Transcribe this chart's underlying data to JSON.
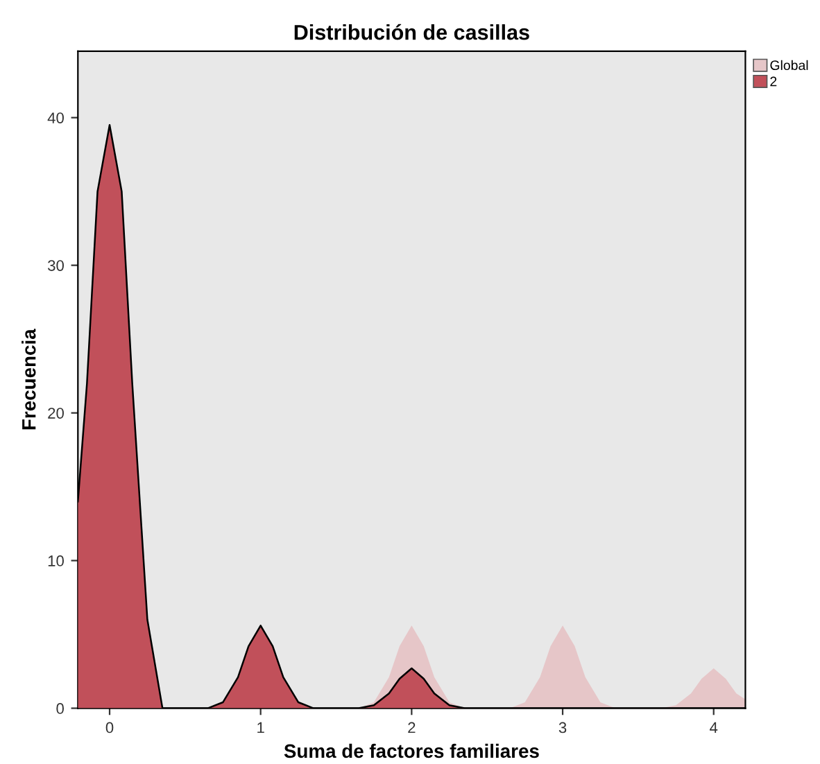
{
  "chart_data": {
    "type": "area",
    "title": "Distribución de casillas",
    "xlabel": "Suma de factores familiares",
    "ylabel": "Frecuencia",
    "xlim": [
      -0.21,
      4.21
    ],
    "xticks": [
      0,
      1,
      2,
      3,
      4
    ],
    "ylim": [
      0,
      44.5
    ],
    "yticks": [
      0,
      10,
      20,
      30,
      40
    ],
    "grid": false,
    "legend": "top right",
    "series": [
      {
        "name": "Global",
        "color": "#e6c6c8",
        "x": [
          1.65,
          1.75,
          1.85,
          1.92,
          2,
          2.08,
          2.15,
          2.25,
          2.35,
          2.65,
          2.75,
          2.85,
          2.92,
          3,
          3.08,
          3.15,
          3.25,
          3.35,
          3.65,
          3.75,
          3.85,
          3.92,
          4,
          4.08,
          4.15,
          4.21
        ],
        "values": [
          0,
          0.4,
          2.1,
          4.2,
          5.6,
          4.2,
          2.1,
          0.4,
          0,
          0,
          0.4,
          2.1,
          4.2,
          5.6,
          4.2,
          2.1,
          0.4,
          0,
          0,
          0.2,
          1,
          2,
          2.7,
          2,
          1,
          0.6
        ]
      },
      {
        "name": "2",
        "color": "#c1505a",
        "x": [
          -0.21,
          -0.15,
          -0.08,
          0,
          0.08,
          0.15,
          0.25,
          0.35,
          0.65,
          0.75,
          0.85,
          0.92,
          1,
          1.08,
          1.15,
          1.25,
          1.35,
          1.65,
          1.75,
          1.85,
          1.92,
          2,
          2.08,
          2.15,
          2.25,
          2.35,
          4.21
        ],
        "values": [
          14,
          22,
          35,
          39.5,
          35,
          22,
          6,
          0,
          0,
          0.4,
          2.1,
          4.2,
          5.6,
          4.2,
          2.1,
          0.4,
          0,
          0,
          0.2,
          1,
          2,
          2.7,
          2,
          1,
          0.2,
          0,
          0
        ]
      }
    ]
  }
}
